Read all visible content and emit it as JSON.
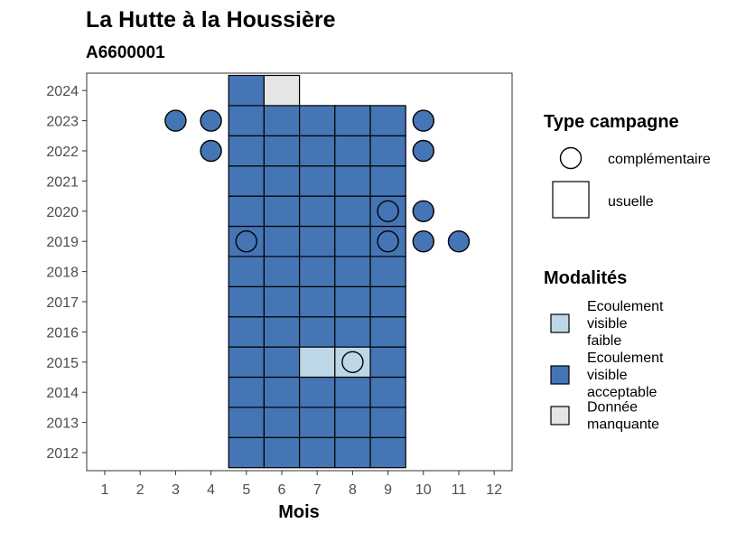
{
  "chart_data": {
    "type": "heatmap",
    "title": "La Hutte à la Houssière",
    "subtitle": "A6600001",
    "xlabel": "Mois",
    "ylabel": "",
    "x_ticks": [
      1,
      2,
      3,
      4,
      5,
      6,
      7,
      8,
      9,
      10,
      11,
      12
    ],
    "y_ticks": [
      2012,
      2013,
      2014,
      2015,
      2016,
      2017,
      2018,
      2019,
      2020,
      2021,
      2022,
      2023,
      2024
    ],
    "xlim": [
      0.5,
      12.5
    ],
    "ylim": [
      2011.4,
      2024.6
    ],
    "grid": false,
    "legend_position": "right",
    "colors": {
      "Ecoulement visible faible": "#bdd7e7",
      "Ecoulement visible acceptable": "#4575b4",
      "Donnée manquante": "#e5e5e5"
    },
    "legends": {
      "type_campagne": {
        "title": "Type campagne",
        "items": [
          "complémentaire",
          "usuelle"
        ]
      },
      "modalites": {
        "title": "Modalités",
        "items": [
          {
            "key": "Ecoulement visible faible",
            "lines": [
              "Ecoulement",
              "visible",
              "faible"
            ]
          },
          {
            "key": "Ecoulement visible acceptable",
            "lines": [
              "Ecoulement",
              "visible",
              "acceptable"
            ]
          },
          {
            "key": "Donnée manquante",
            "lines": [
              "Donnée",
              "manquante"
            ]
          }
        ]
      }
    },
    "usuelle": [
      {
        "year": 2012,
        "months": [
          5,
          6,
          7,
          8,
          9
        ],
        "modalite": "Ecoulement visible acceptable"
      },
      {
        "year": 2013,
        "months": [
          5,
          6,
          7,
          8,
          9
        ],
        "modalite": "Ecoulement visible acceptable"
      },
      {
        "year": 2014,
        "months": [
          5,
          6,
          7,
          8,
          9
        ],
        "modalite": "Ecoulement visible acceptable"
      },
      {
        "year": 2015,
        "months": [
          5,
          6,
          9
        ],
        "modalite": "Ecoulement visible acceptable"
      },
      {
        "year": 2015,
        "months": [
          7,
          8
        ],
        "modalite": "Ecoulement visible faible"
      },
      {
        "year": 2016,
        "months": [
          5,
          6,
          7,
          8,
          9
        ],
        "modalite": "Ecoulement visible acceptable"
      },
      {
        "year": 2017,
        "months": [
          5,
          6,
          7,
          8,
          9
        ],
        "modalite": "Ecoulement visible acceptable"
      },
      {
        "year": 2018,
        "months": [
          5,
          6,
          7,
          8,
          9
        ],
        "modalite": "Ecoulement visible acceptable"
      },
      {
        "year": 2019,
        "months": [
          5,
          6,
          7,
          8,
          9
        ],
        "modalite": "Ecoulement visible acceptable"
      },
      {
        "year": 2020,
        "months": [
          5,
          6,
          7,
          8,
          9
        ],
        "modalite": "Ecoulement visible acceptable"
      },
      {
        "year": 2021,
        "months": [
          5,
          6,
          7,
          8,
          9
        ],
        "modalite": "Ecoulement visible acceptable"
      },
      {
        "year": 2022,
        "months": [
          5,
          6,
          7,
          8,
          9
        ],
        "modalite": "Ecoulement visible acceptable"
      },
      {
        "year": 2023,
        "months": [
          5,
          6,
          7,
          8,
          9
        ],
        "modalite": "Ecoulement visible acceptable"
      },
      {
        "year": 2024,
        "months": [
          5
        ],
        "modalite": "Ecoulement visible acceptable"
      },
      {
        "year": 2024,
        "months": [
          6
        ],
        "modalite": "Donnée manquante"
      }
    ],
    "complementaire": [
      {
        "year": 2023,
        "month": 3,
        "modalite": "Ecoulement visible acceptable"
      },
      {
        "year": 2023,
        "month": 4,
        "modalite": "Ecoulement visible acceptable"
      },
      {
        "year": 2023,
        "month": 10,
        "modalite": "Ecoulement visible acceptable"
      },
      {
        "year": 2022,
        "month": 4,
        "modalite": "Ecoulement visible acceptable"
      },
      {
        "year": 2022,
        "month": 10,
        "modalite": "Ecoulement visible acceptable"
      },
      {
        "year": 2020,
        "month": 9,
        "modalite": "Ecoulement visible acceptable"
      },
      {
        "year": 2020,
        "month": 10,
        "modalite": "Ecoulement visible acceptable"
      },
      {
        "year": 2019,
        "month": 5,
        "modalite": "Ecoulement visible acceptable"
      },
      {
        "year": 2019,
        "month": 9,
        "modalite": "Ecoulement visible acceptable"
      },
      {
        "year": 2019,
        "month": 10,
        "modalite": "Ecoulement visible acceptable"
      },
      {
        "year": 2019,
        "month": 11,
        "modalite": "Ecoulement visible acceptable"
      },
      {
        "year": 2015,
        "month": 8,
        "modalite": "Ecoulement visible faible"
      }
    ]
  }
}
